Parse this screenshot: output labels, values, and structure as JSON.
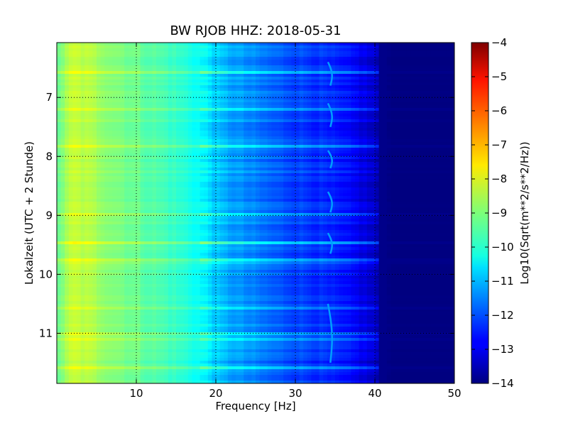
{
  "chart_data": {
    "type": "heatmap",
    "title": "BW RJOB HHZ: 2018-05-31",
    "xlabel": "Frequency [Hz]",
    "ylabel": "Lokalzeit (UTC + 2 Stunde)",
    "colorbar_label": "Log10(Sqrt(m**2/s**2/Hz))",
    "xlim": [
      0,
      50
    ],
    "ylim": [
      11.85,
      6.07
    ],
    "x_ticks": [
      10,
      20,
      30,
      40,
      50
    ],
    "x_tick_labels": [
      "10",
      "20",
      "30",
      "40",
      "50"
    ],
    "y_ticks": [
      7,
      8,
      9,
      10,
      11
    ],
    "y_tick_labels": [
      "7",
      "8",
      "9",
      "10",
      "11"
    ],
    "clim": [
      -14,
      -4
    ],
    "colorbar_ticks": [
      -4,
      -5,
      -6,
      -7,
      -8,
      -9,
      -10,
      -11,
      -12,
      -13,
      -14
    ],
    "colorbar_tick_labels": [
      "−4",
      "−5",
      "−6",
      "−7",
      "−8",
      "−9",
      "−10",
      "−11",
      "−12",
      "−13",
      "−14"
    ],
    "colormap": "jet",
    "grid": true,
    "spectral_profile": {
      "frequency_hz": [
        0,
        1,
        2,
        4,
        7,
        10,
        14,
        17,
        19,
        20,
        21,
        24,
        28,
        32,
        35,
        38,
        40,
        41,
        42,
        50
      ],
      "log10_amplitude": [
        -9.2,
        -8.8,
        -8.3,
        -8.5,
        -8.9,
        -9.2,
        -9.6,
        -10.0,
        -10.4,
        -10.8,
        -11.0,
        -11.4,
        -11.9,
        -12.2,
        -12.5,
        -12.9,
        -13.3,
        -13.8,
        -14.0,
        -14.0
      ]
    },
    "tonal_line": {
      "frequency_hz": 34.5,
      "log10_amplitude": -11.2,
      "time_segments": [
        [
          6.4,
          6.8
        ],
        [
          7.1,
          7.5
        ],
        [
          7.9,
          8.2
        ],
        [
          8.6,
          8.95
        ],
        [
          9.3,
          9.65
        ],
        [
          10.5,
          11.5
        ]
      ]
    }
  }
}
